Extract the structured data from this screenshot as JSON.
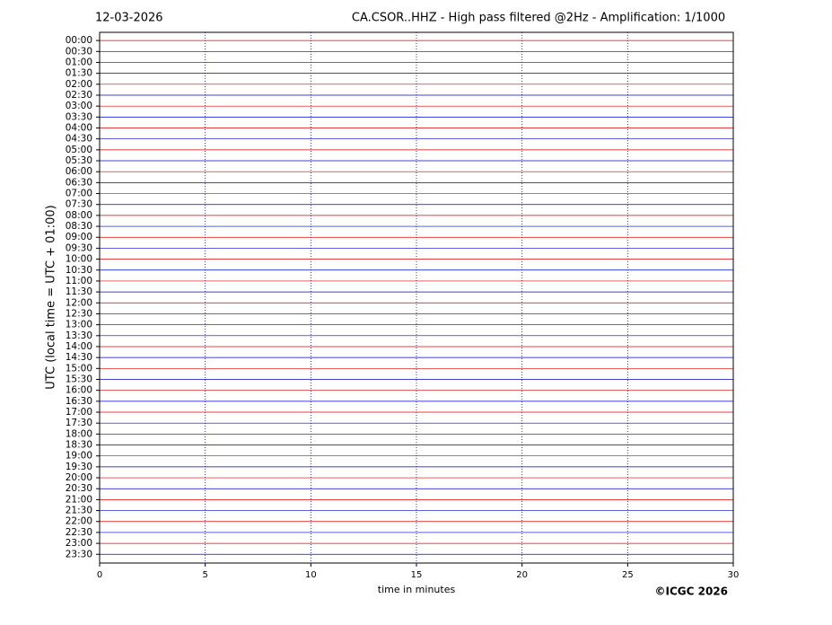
{
  "chart_data": {
    "type": "helicorder",
    "date": "12-03-2026",
    "title": "CA.CSOR..HHZ - High pass filtered @2Hz - Amplification: 1/1000",
    "x_label": "time in minutes",
    "y_label": "UTC (local time = UTC + 01:00)",
    "copyright": "©ICGC 2026",
    "xlim": [
      0,
      30
    ],
    "xticks": [
      0,
      5,
      10,
      15,
      20,
      25,
      30
    ],
    "ylim": [
      47.8,
      -0.75
    ],
    "trace_colors": [
      "#e00000",
      "#0000d0"
    ],
    "grid": true,
    "yticks": [
      {
        "value": 0,
        "label": "00:00"
      },
      {
        "value": 1,
        "label": "00:30"
      },
      {
        "value": 2,
        "label": "01:00"
      },
      {
        "value": 3,
        "label": "01:30"
      },
      {
        "value": 4,
        "label": "02:00"
      },
      {
        "value": 5,
        "label": "02:30"
      },
      {
        "value": 6,
        "label": "03:00"
      },
      {
        "value": 7,
        "label": "03:30"
      },
      {
        "value": 8,
        "label": "04:00"
      },
      {
        "value": 9,
        "label": "04:30"
      },
      {
        "value": 10,
        "label": "05:00"
      },
      {
        "value": 11,
        "label": "05:30"
      },
      {
        "value": 12,
        "label": "06:00"
      },
      {
        "value": 13,
        "label": "06:30"
      },
      {
        "value": 14,
        "label": "07:00"
      },
      {
        "value": 15,
        "label": "07:30"
      },
      {
        "value": 16,
        "label": "08:00"
      },
      {
        "value": 17,
        "label": "08:30"
      },
      {
        "value": 18,
        "label": "09:00"
      },
      {
        "value": 19,
        "label": "09:30"
      },
      {
        "value": 20,
        "label": "10:00"
      },
      {
        "value": 21,
        "label": "10:30"
      },
      {
        "value": 22,
        "label": "11:00"
      },
      {
        "value": 23,
        "label": "11:30"
      },
      {
        "value": 24,
        "label": "12:00"
      },
      {
        "value": 25,
        "label": "12:30"
      },
      {
        "value": 26,
        "label": "13:00"
      },
      {
        "value": 27,
        "label": "13:30"
      },
      {
        "value": 28,
        "label": "14:00"
      },
      {
        "value": 29,
        "label": "14:30"
      },
      {
        "value": 30,
        "label": "15:00"
      },
      {
        "value": 31,
        "label": "15:30"
      },
      {
        "value": 32,
        "label": "16:00"
      },
      {
        "value": 33,
        "label": "16:30"
      },
      {
        "value": 34,
        "label": "17:00"
      },
      {
        "value": 35,
        "label": "17:30"
      },
      {
        "value": 36,
        "label": "18:00"
      },
      {
        "value": 37,
        "label": "18:30"
      },
      {
        "value": 38,
        "label": "19:00"
      },
      {
        "value": 39,
        "label": "19:30"
      },
      {
        "value": 40,
        "label": "20:00"
      },
      {
        "value": 41,
        "label": "20:30"
      },
      {
        "value": 42,
        "label": "21:00"
      },
      {
        "value": 43,
        "label": "21:30"
      },
      {
        "value": 44,
        "label": "22:00"
      },
      {
        "value": 45,
        "label": "22:30"
      },
      {
        "value": 46,
        "label": "23:00"
      },
      {
        "value": 47,
        "label": "23:30"
      }
    ]
  }
}
